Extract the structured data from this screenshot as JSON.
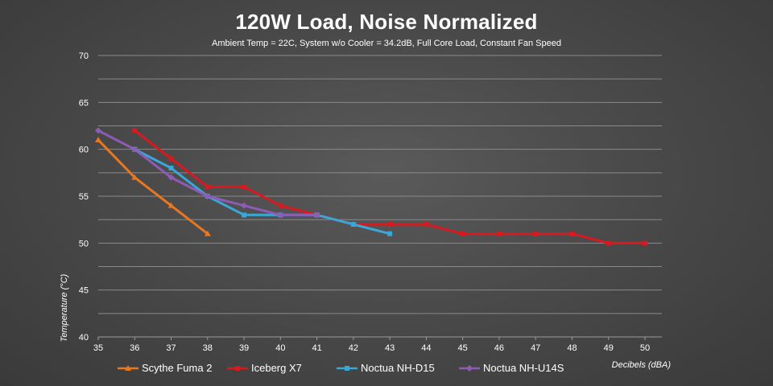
{
  "chart_data": {
    "type": "line",
    "title": "120W Load, Noise Normalized",
    "subtitle": "Ambient Temp = 22C, System w/o Cooler = 34.2dB, Full Core Load, Constant Fan Speed",
    "xlabel": "Decibels (dBA)",
    "ylabel": "Temperature (°C)",
    "xlim": [
      35,
      50
    ],
    "ylim": [
      40,
      70
    ],
    "xticks": [
      35,
      36,
      37,
      38,
      39,
      40,
      41,
      42,
      43,
      44,
      45,
      46,
      47,
      48,
      49,
      50
    ],
    "yticks": [
      40,
      45,
      50,
      55,
      60,
      65,
      70
    ],
    "grid": true,
    "legend_position": "bottom",
    "series": [
      {
        "name": "Scythe Fuma 2",
        "color": "#e87722",
        "marker": "triangle",
        "x": [
          35,
          36,
          37,
          38
        ],
        "y": [
          61,
          57,
          54,
          51
        ]
      },
      {
        "name": "Iceberg X7",
        "color": "#d71920",
        "marker": "square",
        "x": [
          36,
          37,
          38,
          39,
          40,
          41,
          42,
          43,
          44,
          45,
          46,
          47,
          48,
          49,
          50
        ],
        "y": [
          62,
          59,
          56,
          56,
          54,
          53,
          52,
          52,
          52,
          51,
          51,
          51,
          51,
          50,
          50
        ]
      },
      {
        "name": "Noctua NH-D15",
        "color": "#3aa7d8",
        "marker": "square",
        "x": [
          36,
          37,
          38,
          39,
          40,
          41,
          42,
          43
        ],
        "y": [
          60,
          58,
          55,
          53,
          53,
          53,
          52,
          51
        ]
      },
      {
        "name": "Noctua NH-U14S",
        "color": "#8e5bb5",
        "marker": "diamond",
        "x": [
          35,
          36,
          37,
          38,
          39,
          40,
          41
        ],
        "y": [
          62,
          60,
          57,
          55,
          54,
          53,
          53
        ]
      }
    ]
  }
}
